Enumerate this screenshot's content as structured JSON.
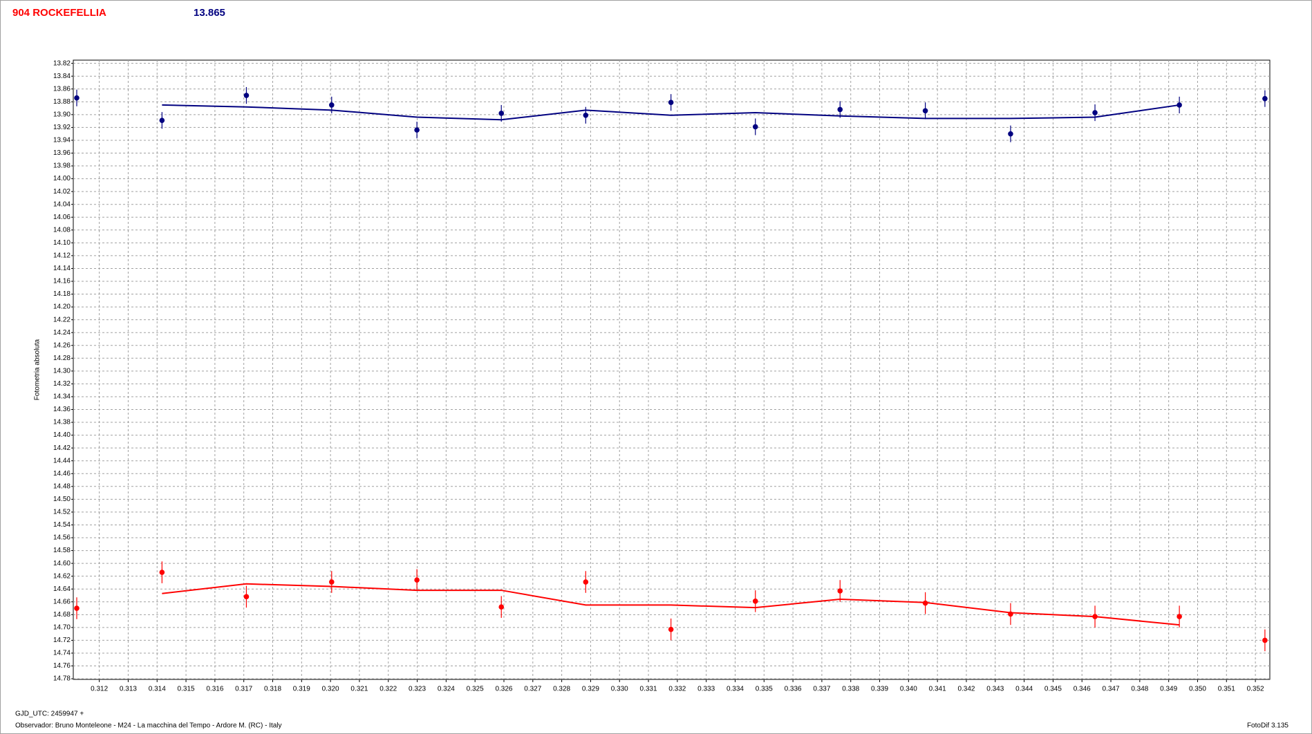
{
  "chart_data": {
    "type": "scatter",
    "title": "904 ROCKEFELLIA",
    "subtitle": "13.865",
    "y_label": "Fotometria absoluta",
    "footer_left": [
      "GJD_UTC: 2459947 +",
      "Observador: Bruno Monteleone - M24 - La macchina del Tempo - Ardore M. (RC) - Italy"
    ],
    "footer_right": "FotoDif 3.135",
    "grid": true,
    "y_inverted": true,
    "xlim": [
      0.3111,
      0.3525
    ],
    "ylim": [
      13.815,
      14.781
    ],
    "x": [
      0.31122,
      0.31417,
      0.31709,
      0.32004,
      0.32299,
      0.32591,
      0.32883,
      0.33178,
      0.3347,
      0.33763,
      0.34058,
      0.34353,
      0.34645,
      0.34937,
      0.35233
    ],
    "series": [
      {
        "color": "#000080",
        "error": 0.013,
        "values": [
          13.874,
          13.909,
          13.87,
          13.885,
          13.924,
          13.898,
          13.901,
          13.881,
          13.919,
          13.892,
          13.894,
          13.93,
          13.897,
          13.885,
          13.875
        ],
        "fit": [
          null,
          13.885,
          13.888,
          13.893,
          13.904,
          13.908,
          13.893,
          13.901,
          13.897,
          13.902,
          13.906,
          13.906,
          13.904,
          13.885,
          null
        ]
      },
      {
        "color": "#ff0000",
        "error": 0.017,
        "values": [
          14.67,
          14.614,
          14.652,
          14.629,
          14.626,
          14.668,
          14.629,
          14.703,
          14.659,
          14.643,
          14.662,
          14.679,
          14.683,
          14.683,
          14.72
        ],
        "fit": [
          null,
          14.647,
          14.632,
          14.636,
          14.642,
          14.642,
          14.665,
          14.665,
          14.669,
          14.656,
          14.661,
          14.677,
          14.683,
          14.696,
          null
        ]
      }
    ],
    "yticks": [
      13.82,
      13.84,
      13.86,
      13.88,
      {
        "value": 13.9,
        "label": "13.90"
      },
      13.92,
      13.94,
      13.96,
      13.98,
      {
        "value": 14.0,
        "label": "14.00"
      },
      14.02,
      14.04,
      14.06,
      14.08,
      {
        "value": 14.1,
        "label": "14.10"
      },
      14.12,
      14.14,
      14.16,
      14.18,
      {
        "value": 14.2,
        "label": "14.20"
      },
      14.22,
      14.24,
      14.26,
      14.28,
      {
        "value": 14.3,
        "label": "14.30"
      },
      14.32,
      14.34,
      14.36,
      14.38,
      {
        "value": 14.4,
        "label": "14.40"
      },
      14.42,
      14.44,
      14.46,
      14.48,
      {
        "value": 14.5,
        "label": "14.50"
      },
      14.52,
      14.54,
      14.56,
      14.58,
      {
        "value": 14.6,
        "label": "14.60"
      },
      14.62,
      14.64,
      14.66,
      14.68,
      {
        "value": 14.7,
        "label": "14.70"
      },
      14.72,
      14.74,
      14.76,
      14.78
    ],
    "xticks": [
      0.312,
      0.313,
      0.314,
      0.315,
      0.316,
      0.317,
      0.318,
      0.319,
      {
        "value": 0.32,
        "label": "0.320"
      },
      0.321,
      0.322,
      0.323,
      0.324,
      0.325,
      0.326,
      0.327,
      0.328,
      0.329,
      {
        "value": 0.33,
        "label": "0.330"
      },
      0.331,
      0.332,
      0.333,
      0.334,
      0.335,
      0.336,
      0.337,
      0.338,
      0.339,
      {
        "value": 0.34,
        "label": "0.340"
      },
      0.341,
      0.342,
      0.343,
      0.344,
      0.345,
      0.346,
      0.347,
      0.348,
      0.349,
      {
        "value": 0.35,
        "label": "0.350"
      },
      0.351,
      0.352
    ]
  }
}
